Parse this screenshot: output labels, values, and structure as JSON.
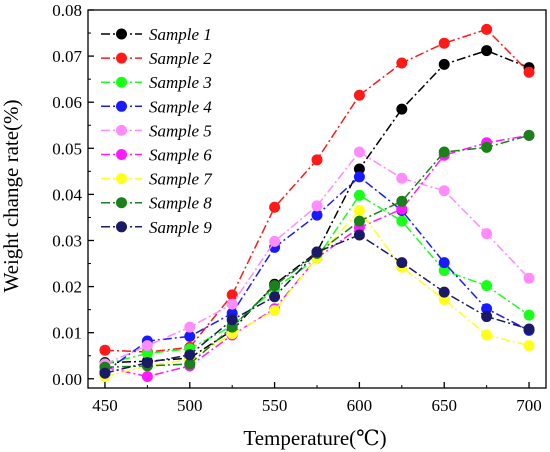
{
  "chart_data": {
    "type": "line",
    "xlabel": "Temperature(℃)",
    "ylabel": "Weight change rate(%)",
    "xlim": [
      440,
      710
    ],
    "ylim": [
      -0.002,
      0.08
    ],
    "x_ticks": [
      "450",
      "500",
      "550",
      "600",
      "650",
      "700"
    ],
    "y_ticks": [
      "0.00",
      "0.01",
      "0.02",
      "0.03",
      "0.04",
      "0.05",
      "0.06",
      "0.07",
      "0.08"
    ],
    "x": [
      450,
      475,
      500,
      525,
      550,
      575,
      600,
      625,
      650,
      675,
      700
    ],
    "legend_position": "top-left",
    "grid": false,
    "series": [
      {
        "name": "Sample 1",
        "color": "#000000",
        "values": [
          0.0035,
          0.0038,
          0.0045,
          0.0105,
          0.0205,
          0.0275,
          0.0455,
          0.0585,
          0.0682,
          0.0712,
          0.0675
        ]
      },
      {
        "name": "Sample 2",
        "color": "#ff1a1a",
        "values": [
          0.0062,
          0.0058,
          0.0068,
          0.0182,
          0.0372,
          0.0475,
          0.0615,
          0.0685,
          0.0728,
          0.0758,
          0.0665
        ]
      },
      {
        "name": "Sample 3",
        "color": "#1aff1a",
        "values": [
          0.0032,
          0.0055,
          0.0065,
          0.0115,
          0.0195,
          0.0262,
          0.0398,
          0.0342,
          0.0235,
          0.0202,
          0.0138
        ]
      },
      {
        "name": "Sample 4",
        "color": "#1a1aff",
        "values": [
          0.0015,
          0.0082,
          0.0092,
          0.0142,
          0.0285,
          0.0355,
          0.0438,
          0.0365,
          0.0252,
          0.0152,
          0.0105
        ]
      },
      {
        "name": "Sample 5",
        "color": "#ff8cff",
        "values": [
          0.0032,
          0.0072,
          0.0112,
          0.0162,
          0.0298,
          0.0375,
          0.0492,
          0.0435,
          0.0408,
          0.0315,
          0.0218
        ]
      },
      {
        "name": "Sample 6",
        "color": "#ff1aff",
        "values": [
          0.0025,
          0.0005,
          0.0028,
          0.0095,
          0.0152,
          0.0262,
          0.0328,
          0.0368,
          0.0485,
          0.0512,
          0.0528
        ]
      },
      {
        "name": "Sample 7",
        "color": "#ffff1a",
        "values": [
          0.0005,
          0.0028,
          0.0042,
          0.0098,
          0.0148,
          0.0262,
          0.0365,
          0.0242,
          0.0172,
          0.0095,
          0.0072
        ]
      },
      {
        "name": "Sample 8",
        "color": "#1a801a",
        "values": [
          0.0025,
          0.0028,
          0.0032,
          0.0112,
          0.0202,
          0.0272,
          0.0342,
          0.0385,
          0.0492,
          0.0502,
          0.0528
        ]
      },
      {
        "name": "Sample 9",
        "color": "#1a1a66",
        "values": [
          0.0012,
          0.0035,
          0.0052,
          0.0128,
          0.0178,
          0.0275,
          0.0312,
          0.0252,
          0.0188,
          0.0135,
          0.0108
        ]
      }
    ]
  }
}
